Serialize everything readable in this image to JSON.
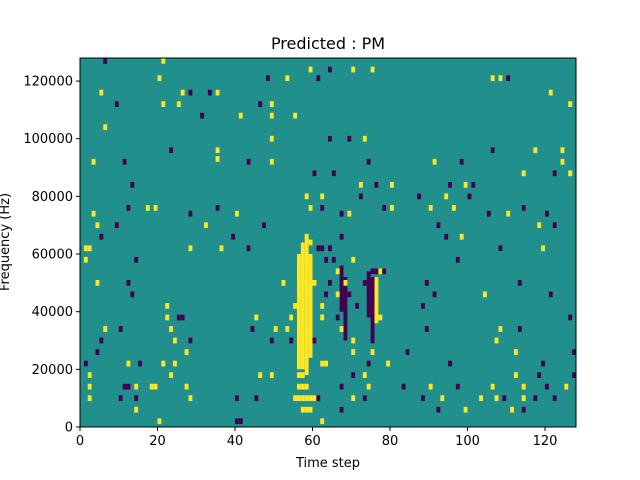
{
  "colors": {
    "background": "#21908d",
    "low": "#440154",
    "high": "#fde725",
    "axis": "#000000"
  },
  "chart_data": {
    "type": "heatmap",
    "title": "Predicted : PM",
    "xlabel": "Time step",
    "ylabel": "Frequency (Hz)",
    "xlim": [
      0,
      128
    ],
    "ylim": [
      0,
      128000
    ],
    "xticks": [
      0,
      20,
      40,
      60,
      80,
      100,
      120
    ],
    "yticks": [
      0,
      20000,
      40000,
      60000,
      80000,
      100000,
      120000
    ],
    "bin_width_x": 1,
    "bin_height_y": 2000,
    "grid": false,
    "legend": "none",
    "background_value": 0,
    "value_scale": {
      "low": -1,
      "background": 0,
      "high": 1
    },
    "cells": [
      [
        6,
        126000,
        -1
      ],
      [
        21,
        126000,
        1
      ],
      [
        64,
        123000,
        -1
      ],
      [
        70,
        123000,
        1
      ],
      [
        75,
        123000,
        1
      ],
      [
        59,
        123000,
        1
      ],
      [
        20,
        120000,
        1
      ],
      [
        48,
        120000,
        -1
      ],
      [
        53,
        120000,
        1
      ],
      [
        61,
        120000,
        -1
      ],
      [
        106,
        120000,
        1
      ],
      [
        110,
        120000,
        -1
      ],
      [
        108,
        120000,
        1
      ],
      [
        5,
        115000,
        1
      ],
      [
        26,
        115000,
        1
      ],
      [
        28,
        115000,
        -1
      ],
      [
        33,
        115000,
        -1
      ],
      [
        35,
        115000,
        1
      ],
      [
        121,
        115000,
        1
      ],
      [
        9,
        111000,
        -1
      ],
      [
        21,
        111000,
        1
      ],
      [
        25,
        111000,
        1
      ],
      [
        46,
        111000,
        -1
      ],
      [
        49,
        111000,
        1
      ],
      [
        126,
        111000,
        1
      ],
      [
        31,
        107000,
        -1
      ],
      [
        41,
        107000,
        1
      ],
      [
        49,
        107000,
        1
      ],
      [
        55,
        107000,
        1
      ],
      [
        6,
        103000,
        1
      ],
      [
        64,
        99000,
        -1
      ],
      [
        69,
        99000,
        -1
      ],
      [
        73,
        99000,
        1
      ],
      [
        49,
        99000,
        1
      ],
      [
        23,
        95000,
        -1
      ],
      [
        35,
        95000,
        1
      ],
      [
        35,
        92000,
        1
      ],
      [
        106,
        95000,
        -1
      ],
      [
        117,
        95000,
        1
      ],
      [
        124,
        95000,
        1
      ],
      [
        3,
        91000,
        1
      ],
      [
        11,
        91000,
        -1
      ],
      [
        43,
        91000,
        -1
      ],
      [
        49,
        91000,
        1
      ],
      [
        74,
        91000,
        -1
      ],
      [
        91,
        91000,
        1
      ],
      [
        98,
        91000,
        -1
      ],
      [
        124,
        91000,
        1
      ],
      [
        60,
        87000,
        -1
      ],
      [
        65,
        87000,
        -1
      ],
      [
        114,
        87000,
        1
      ],
      [
        122,
        87000,
        -1
      ],
      [
        126,
        87000,
        1
      ],
      [
        13,
        83000,
        -1
      ],
      [
        72,
        83000,
        1
      ],
      [
        76,
        83000,
        -1
      ],
      [
        80,
        83000,
        1
      ],
      [
        95,
        83000,
        -1
      ],
      [
        99,
        83000,
        1
      ],
      [
        101,
        83000,
        -1
      ],
      [
        58,
        79000,
        1
      ],
      [
        62,
        79000,
        1
      ],
      [
        72,
        79000,
        -1
      ],
      [
        87,
        79000,
        -1
      ],
      [
        94,
        79000,
        1
      ],
      [
        100,
        79000,
        -1
      ],
      [
        128,
        79000,
        -1
      ],
      [
        12,
        75000,
        -1
      ],
      [
        17,
        75000,
        1
      ],
      [
        19,
        75000,
        1
      ],
      [
        35,
        75000,
        -1
      ],
      [
        59,
        75000,
        1
      ],
      [
        62,
        75000,
        -1
      ],
      [
        78,
        75000,
        -1
      ],
      [
        80,
        75000,
        1
      ],
      [
        90,
        75000,
        1
      ],
      [
        96,
        75000,
        1
      ],
      [
        114,
        75000,
        -1
      ],
      [
        3,
        73000,
        1
      ],
      [
        28,
        73000,
        -1
      ],
      [
        40,
        73000,
        1
      ],
      [
        69,
        73000,
        1
      ],
      [
        67,
        73000,
        -1
      ],
      [
        105,
        73000,
        -1
      ],
      [
        110,
        73000,
        1
      ],
      [
        120,
        73000,
        -1
      ],
      [
        4,
        69000,
        1
      ],
      [
        9,
        69000,
        -1
      ],
      [
        32,
        69000,
        1
      ],
      [
        47,
        69000,
        -1
      ],
      [
        92,
        69000,
        -1
      ],
      [
        118,
        69000,
        1
      ],
      [
        122,
        69000,
        -1
      ],
      [
        5,
        65000,
        -1
      ],
      [
        39,
        65000,
        -1
      ],
      [
        58,
        65000,
        1
      ],
      [
        59,
        63000,
        1
      ],
      [
        67,
        65000,
        -1
      ],
      [
        94,
        65000,
        -1
      ],
      [
        98,
        65000,
        1
      ],
      [
        1,
        61000,
        1
      ],
      [
        2,
        61000,
        1
      ],
      [
        28,
        61000,
        1
      ],
      [
        36,
        61000,
        1
      ],
      [
        43,
        61000,
        -1
      ],
      [
        61,
        61000,
        -1
      ],
      [
        62,
        61000,
        -1
      ],
      [
        64,
        61000,
        -1
      ],
      [
        108,
        61000,
        -1
      ],
      [
        119,
        61000,
        1
      ],
      [
        1,
        57000,
        1
      ],
      [
        14,
        57000,
        -1
      ],
      [
        57,
        57000,
        1
      ],
      [
        58,
        57000,
        1
      ],
      [
        59,
        57000,
        1
      ],
      [
        63,
        57000,
        -1
      ],
      [
        65,
        57000,
        -1
      ],
      [
        70,
        57000,
        1
      ],
      [
        97,
        57000,
        -1
      ],
      [
        66,
        53000,
        1
      ],
      [
        75,
        53000,
        -1
      ],
      [
        76,
        53000,
        -1
      ],
      [
        77,
        53000,
        1
      ],
      [
        78,
        53000,
        -1
      ],
      [
        4,
        49000,
        1
      ],
      [
        12,
        49000,
        -1
      ],
      [
        52,
        49000,
        1
      ],
      [
        57,
        49000,
        1
      ],
      [
        60,
        49000,
        1
      ],
      [
        64,
        49000,
        -1
      ],
      [
        68,
        49000,
        1
      ],
      [
        73,
        49000,
        -1
      ],
      [
        75,
        49000,
        -1
      ],
      [
        89,
        49000,
        -1
      ],
      [
        113,
        49000,
        -1
      ],
      [
        13,
        45000,
        -1
      ],
      [
        56,
        45000,
        1
      ],
      [
        59,
        45000,
        1
      ],
      [
        63,
        45000,
        -1
      ],
      [
        66,
        45000,
        1
      ],
      [
        69,
        45000,
        -1
      ],
      [
        74,
        45000,
        -1
      ],
      [
        91,
        45000,
        -1
      ],
      [
        104,
        45000,
        1
      ],
      [
        121,
        45000,
        -1
      ],
      [
        22,
        41000,
        1
      ],
      [
        55,
        41000,
        1
      ],
      [
        62,
        41000,
        1
      ],
      [
        67,
        41000,
        -1
      ],
      [
        71,
        41000,
        -1
      ],
      [
        88,
        41000,
        -1
      ],
      [
        25,
        37000,
        -1
      ],
      [
        26,
        37000,
        -1
      ],
      [
        22,
        37000,
        1
      ],
      [
        45,
        37000,
        1
      ],
      [
        54,
        37000,
        1
      ],
      [
        62,
        37000,
        1
      ],
      [
        66,
        37000,
        -1
      ],
      [
        68,
        37000,
        -1
      ],
      [
        75,
        37000,
        -1
      ],
      [
        77,
        37000,
        1
      ],
      [
        126,
        37000,
        -1
      ],
      [
        6,
        33000,
        1
      ],
      [
        10,
        33000,
        -1
      ],
      [
        23,
        33000,
        1
      ],
      [
        44,
        33000,
        -1
      ],
      [
        50,
        33000,
        1
      ],
      [
        53,
        33000,
        1
      ],
      [
        59,
        33000,
        1
      ],
      [
        67,
        33000,
        1
      ],
      [
        89,
        33000,
        -1
      ],
      [
        108,
        33000,
        1
      ],
      [
        113,
        33000,
        -1
      ],
      [
        5,
        29000,
        -1
      ],
      [
        24,
        29000,
        1
      ],
      [
        28,
        29000,
        -1
      ],
      [
        49,
        29000,
        -1
      ],
      [
        54,
        29000,
        -1
      ],
      [
        56,
        29000,
        1
      ],
      [
        60,
        29000,
        -1
      ],
      [
        70,
        29000,
        1
      ],
      [
        75,
        29000,
        -1
      ],
      [
        107,
        29000,
        1
      ],
      [
        4,
        25000,
        -1
      ],
      [
        27,
        25000,
        1
      ],
      [
        70,
        25000,
        1
      ],
      [
        75,
        25000,
        1
      ],
      [
        84,
        25000,
        -1
      ],
      [
        112,
        25000,
        1
      ],
      [
        127,
        25000,
        -1
      ],
      [
        128,
        25000,
        -1
      ],
      [
        1,
        21000,
        -1
      ],
      [
        12,
        21000,
        1
      ],
      [
        15,
        21000,
        -1
      ],
      [
        21,
        21000,
        1
      ],
      [
        24,
        21000,
        1
      ],
      [
        62,
        21000,
        1
      ],
      [
        63,
        21000,
        1
      ],
      [
        74,
        21000,
        -1
      ],
      [
        79,
        21000,
        1
      ],
      [
        95,
        21000,
        -1
      ],
      [
        119,
        21000,
        -1
      ],
      [
        2,
        17000,
        1
      ],
      [
        23,
        17000,
        1
      ],
      [
        46,
        17000,
        1
      ],
      [
        49,
        17000,
        1
      ],
      [
        56,
        17000,
        1
      ],
      [
        57,
        17000,
        1
      ],
      [
        70,
        17000,
        -1
      ],
      [
        73,
        17000,
        1
      ],
      [
        112,
        17000,
        1
      ],
      [
        118,
        17000,
        -1
      ],
      [
        127,
        17000,
        -1
      ],
      [
        2,
        13000,
        1
      ],
      [
        11,
        13000,
        -1
      ],
      [
        12,
        13000,
        -1
      ],
      [
        14,
        13000,
        1
      ],
      [
        18,
        13000,
        1
      ],
      [
        19,
        13000,
        1
      ],
      [
        27,
        13000,
        1
      ],
      [
        56,
        13000,
        1
      ],
      [
        57,
        13000,
        1
      ],
      [
        58,
        13000,
        1
      ],
      [
        67,
        13000,
        -1
      ],
      [
        74,
        13000,
        1
      ],
      [
        83,
        13000,
        -1
      ],
      [
        90,
        13000,
        1
      ],
      [
        97,
        13000,
        -1
      ],
      [
        106,
        13000,
        1
      ],
      [
        114,
        13000,
        1
      ],
      [
        120,
        13000,
        -1
      ],
      [
        125,
        13000,
        1
      ],
      [
        2,
        9000,
        1
      ],
      [
        10,
        9000,
        -1
      ],
      [
        14,
        9000,
        -1
      ],
      [
        28,
        9000,
        1
      ],
      [
        40,
        9000,
        -1
      ],
      [
        45,
        9000,
        -1
      ],
      [
        55,
        9000,
        1
      ],
      [
        56,
        9000,
        1
      ],
      [
        57,
        9000,
        1
      ],
      [
        58,
        9000,
        1
      ],
      [
        59,
        9000,
        1
      ],
      [
        60,
        9000,
        1
      ],
      [
        61,
        9000,
        -1
      ],
      [
        70,
        9000,
        1
      ],
      [
        73,
        9000,
        -1
      ],
      [
        88,
        9000,
        -1
      ],
      [
        93,
        9000,
        1
      ],
      [
        103,
        9000,
        1
      ],
      [
        107,
        9000,
        1
      ],
      [
        109,
        9000,
        -1
      ],
      [
        114,
        9000,
        1
      ],
      [
        117,
        9000,
        -1
      ],
      [
        122,
        9000,
        -1
      ],
      [
        14,
        5000,
        1
      ],
      [
        57,
        5000,
        1
      ],
      [
        58,
        5000,
        1
      ],
      [
        59,
        5000,
        1
      ],
      [
        67,
        5000,
        -1
      ],
      [
        92,
        5000,
        -1
      ],
      [
        99,
        5000,
        1
      ],
      [
        111,
        5000,
        1
      ],
      [
        114,
        5000,
        -1
      ],
      [
        20,
        1000,
        1
      ],
      [
        40,
        1000,
        -1
      ],
      [
        41,
        1000,
        -1
      ],
      [
        62,
        1000,
        1
      ]
    ],
    "bands": [
      [
        56,
        20000,
        60000,
        1
      ],
      [
        57,
        20000,
        64000,
        1
      ],
      [
        58,
        18000,
        66000,
        1
      ],
      [
        59,
        24000,
        60000,
        1
      ],
      [
        67,
        40000,
        56000,
        -1
      ],
      [
        68,
        30000,
        52000,
        -1
      ],
      [
        74,
        38000,
        54000,
        -1
      ],
      [
        75,
        30000,
        52000,
        -1
      ],
      [
        76,
        36000,
        52000,
        1
      ]
    ]
  }
}
